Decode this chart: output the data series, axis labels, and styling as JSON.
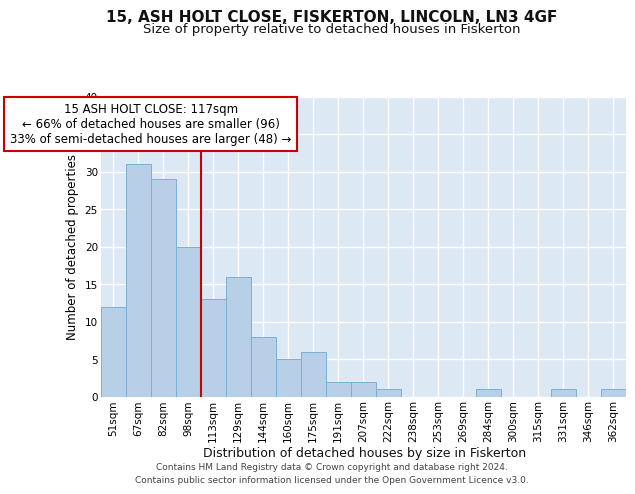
{
  "title": "15, ASH HOLT CLOSE, FISKERTON, LINCOLN, LN3 4GF",
  "subtitle": "Size of property relative to detached houses in Fiskerton",
  "xlabel": "Distribution of detached houses by size in Fiskerton",
  "ylabel": "Number of detached properties",
  "categories": [
    "51sqm",
    "67sqm",
    "82sqm",
    "98sqm",
    "113sqm",
    "129sqm",
    "144sqm",
    "160sqm",
    "175sqm",
    "191sqm",
    "207sqm",
    "222sqm",
    "238sqm",
    "253sqm",
    "269sqm",
    "284sqm",
    "300sqm",
    "315sqm",
    "331sqm",
    "346sqm",
    "362sqm"
  ],
  "values": [
    12,
    31,
    29,
    20,
    13,
    16,
    8,
    5,
    6,
    2,
    2,
    1,
    0,
    0,
    0,
    1,
    0,
    0,
    1,
    0,
    1
  ],
  "bar_color": "#b8cfe8",
  "bar_edge_color": "#7aafd4",
  "bar_edge_width": 0.7,
  "marker_index": 4,
  "marker_color": "#cc0000",
  "ylim": [
    0,
    40
  ],
  "yticks": [
    0,
    5,
    10,
    15,
    20,
    25,
    30,
    35,
    40
  ],
  "background_color": "#dde8f5",
  "grid_color": "#ffffff",
  "annotation_line1": "15 ASH HOLT CLOSE: 117sqm",
  "annotation_line2": "← 66% of detached houses are smaller (96)",
  "annotation_line3": "33% of semi-detached houses are larger (48) →",
  "footer_line1": "Contains HM Land Registry data © Crown copyright and database right 2024.",
  "footer_line2": "Contains public sector information licensed under the Open Government Licence v3.0.",
  "title_fontsize": 11,
  "subtitle_fontsize": 9.5,
  "xlabel_fontsize": 9,
  "ylabel_fontsize": 8.5,
  "tick_fontsize": 7.5,
  "annotation_fontsize": 8.5,
  "footer_fontsize": 6.5
}
